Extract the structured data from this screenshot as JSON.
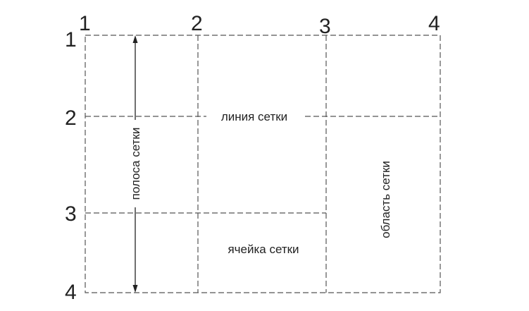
{
  "columns": [
    "1",
    "2",
    "3",
    "4"
  ],
  "rows": [
    "1",
    "2",
    "3",
    "4"
  ],
  "labels": {
    "grid_line": "линия сетки",
    "grid_track": "полоса сетки",
    "grid_area": "область сетки",
    "grid_cell": "ячейка сетки"
  },
  "colors": {
    "line": "#555555",
    "text": "#222222",
    "background": "#ffffff"
  }
}
